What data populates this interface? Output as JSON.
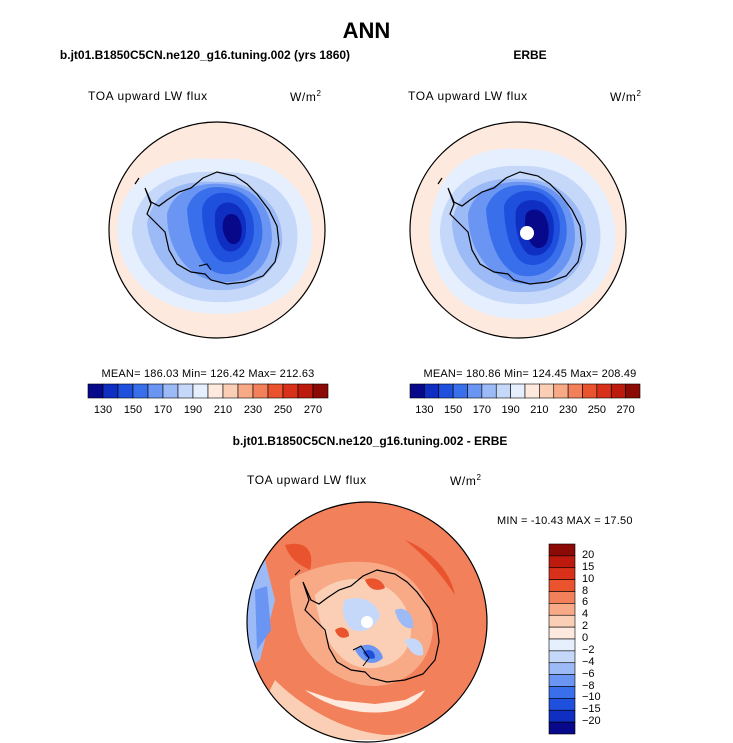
{
  "page_title": "ANN",
  "panels": [
    {
      "title": "b.jt01.B1850C5CN.ne120_g16.tuning.002 (yrs 1860)",
      "field_label": "TOA upward LW flux",
      "units": "W/m",
      "units_exp": "2",
      "stats": "MEAN= 186.03   Min= 126.42   Max= 212.63"
    },
    {
      "title": "ERBE",
      "field_label": "TOA upward LW flux",
      "units": "W/m",
      "units_exp": "2",
      "stats": "MEAN= 180.86   Min= 124.45   Max= 208.49"
    }
  ],
  "diff_panel": {
    "title": "b.jt01.B1850C5CN.ne120_g16.tuning.002 - ERBE",
    "field_label": "TOA upward LW flux",
    "units": "W/m",
    "units_exp": "2",
    "stats": "MIN = -10.43  MAX =  17.50"
  },
  "colorbar_abs": {
    "tick_labels": [
      "130",
      "150",
      "170",
      "190",
      "210",
      "230",
      "250",
      "270"
    ],
    "colors": [
      "#08088a",
      "#0f2fc2",
      "#1f50dd",
      "#3a6fec",
      "#6a95f2",
      "#9bbaf6",
      "#c6d8fa",
      "#e6effd",
      "#fde9dd",
      "#fbcfb6",
      "#f8aa87",
      "#f2805a",
      "#e9542f",
      "#d9301a",
      "#bb1a0c",
      "#8b0a05"
    ]
  },
  "colorbar_diff": {
    "tick_labels": [
      "20",
      "15",
      "10",
      "8",
      "6",
      "4",
      "2",
      "0",
      "-2",
      "-4",
      "-6",
      "-8",
      "-10",
      "-15",
      "-20"
    ],
    "colors": [
      "#8b0a05",
      "#bb1a0c",
      "#d9301a",
      "#e9542f",
      "#f2805a",
      "#f8aa87",
      "#fbcfb6",
      "#fde9dd",
      "#e6effd",
      "#c6d8fa",
      "#9bbaf6",
      "#6a95f2",
      "#3a6fec",
      "#1f50dd",
      "#0f2fc2",
      "#08088a"
    ]
  }
}
